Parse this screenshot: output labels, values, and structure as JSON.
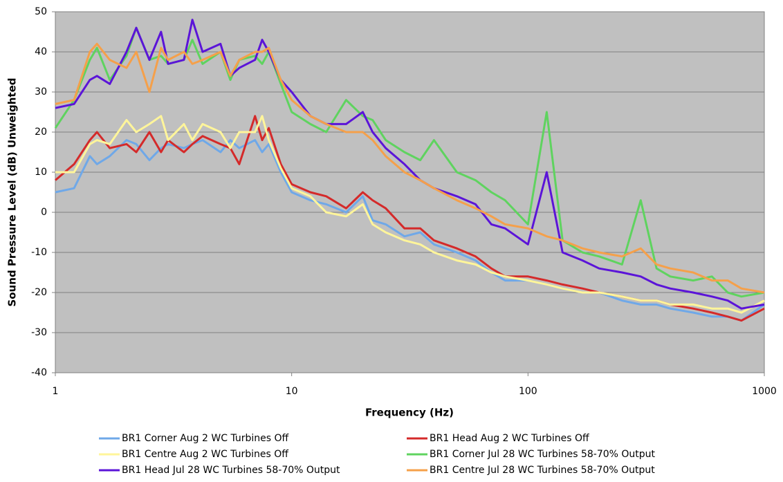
{
  "chart_data": {
    "type": "line",
    "x_label": "Frequency (Hz)",
    "y_label": "Sound Pressure Level (dB) Unweighted",
    "xscale": "log",
    "xlim": [
      1,
      1000
    ],
    "xticks": [
      1,
      10,
      100,
      1000
    ],
    "ylim": [
      -40,
      50
    ],
    "yticks": [
      -40,
      -30,
      -20,
      -10,
      0,
      10,
      20,
      30,
      40,
      50
    ],
    "grid": true,
    "x": [
      1,
      1.2,
      1.4,
      1.5,
      1.7,
      2,
      2.2,
      2.5,
      2.8,
      3,
      3.5,
      3.8,
      4.2,
      5,
      5.5,
      6,
      7,
      7.5,
      8,
      9,
      10,
      12,
      14,
      17,
      20,
      22,
      25,
      30,
      35,
      40,
      50,
      60,
      70,
      80,
      100,
      120,
      140,
      170,
      200,
      250,
      300,
      350,
      400,
      500,
      600,
      700,
      800,
      1000
    ],
    "series": [
      {
        "name": "BR1 Corner Aug 2 WC Turbines Off",
        "color": "#6fa8e8",
        "values": [
          5,
          6,
          14,
          12,
          14,
          18,
          17,
          13,
          16,
          17,
          16,
          17,
          18,
          15,
          18,
          16,
          18,
          15,
          17,
          10,
          5,
          3,
          2,
          0,
          4,
          -2,
          -3,
          -6,
          -5,
          -8,
          -10,
          -12,
          -15,
          -17,
          -17,
          -18,
          -19,
          -20,
          -20,
          -22,
          -23,
          -23,
          -24,
          -25,
          -26,
          -26,
          -27,
          -23
        ]
      },
      {
        "name": "BR1 Head Aug 2 WC Turbines Off",
        "color": "#d42a2a",
        "values": [
          8,
          12,
          18,
          20,
          16,
          17,
          15,
          20,
          15,
          18,
          15,
          17,
          19,
          17,
          16,
          12,
          24,
          18,
          21,
          12,
          7,
          5,
          4,
          1,
          5,
          3,
          1,
          -4,
          -4,
          -7,
          -9,
          -11,
          -14,
          -16,
          -16,
          -17,
          -18,
          -19,
          -20,
          -21,
          -22,
          -22,
          -23,
          -24,
          -25,
          -26,
          -27,
          -24
        ]
      },
      {
        "name": "BR1 Centre Aug 2 WC Turbines Off",
        "color": "#fff59a",
        "values": [
          10,
          10,
          17,
          18,
          17,
          23,
          20,
          22,
          24,
          18,
          22,
          18,
          22,
          20,
          16,
          20,
          20,
          24,
          18,
          11,
          6,
          4,
          0,
          -1,
          2,
          -3,
          -5,
          -7,
          -8,
          -10,
          -12,
          -13,
          -15,
          -16,
          -17,
          -18,
          -19,
          -20,
          -20,
          -21,
          -22,
          -22,
          -23,
          -23,
          -24,
          -24,
          -25,
          -22
        ]
      },
      {
        "name": "BR1 Corner Jul 28 WC Turbines 58-70% Output",
        "color": "#5fd35f",
        "values": [
          21,
          28,
          38,
          41,
          33,
          39,
          46,
          38,
          39,
          37,
          38,
          43,
          37,
          40,
          33,
          38,
          39,
          37,
          40,
          32,
          25,
          22,
          20,
          28,
          24,
          23,
          18,
          15,
          13,
          18,
          10,
          8,
          5,
          3,
          -3,
          25,
          -7,
          -10,
          -11,
          -13,
          3,
          -14,
          -16,
          -17,
          -16,
          -20,
          -21,
          -20
        ]
      },
      {
        "name": "BR1 Head Jul 28 WC Turbines 58-70% Output",
        "color": "#5b14d8",
        "values": [
          26,
          27,
          33,
          34,
          32,
          40,
          46,
          38,
          45,
          37,
          38,
          48,
          40,
          42,
          34,
          36,
          38,
          43,
          40,
          33,
          30,
          24,
          22,
          22,
          25,
          20,
          16,
          12,
          8,
          6,
          4,
          2,
          -3,
          -4,
          -8,
          10,
          -10,
          -12,
          -14,
          -15,
          -16,
          -18,
          -19,
          -20,
          -21,
          -22,
          -24,
          -23
        ]
      },
      {
        "name": "BR1 Centre Jul 28 WC Turbines 58-70% Output",
        "color": "#f5a04a",
        "values": [
          27,
          28,
          40,
          42,
          38,
          36,
          40,
          30,
          41,
          38,
          40,
          37,
          38,
          40,
          34,
          38,
          40,
          40,
          41,
          33,
          28,
          24,
          22,
          20,
          20,
          18,
          14,
          10,
          8,
          6,
          3,
          1,
          -1,
          -3,
          -4,
          -6,
          -7,
          -9,
          -10,
          -11,
          -9,
          -13,
          -14,
          -15,
          -17,
          -17,
          -19,
          -20
        ]
      }
    ]
  }
}
